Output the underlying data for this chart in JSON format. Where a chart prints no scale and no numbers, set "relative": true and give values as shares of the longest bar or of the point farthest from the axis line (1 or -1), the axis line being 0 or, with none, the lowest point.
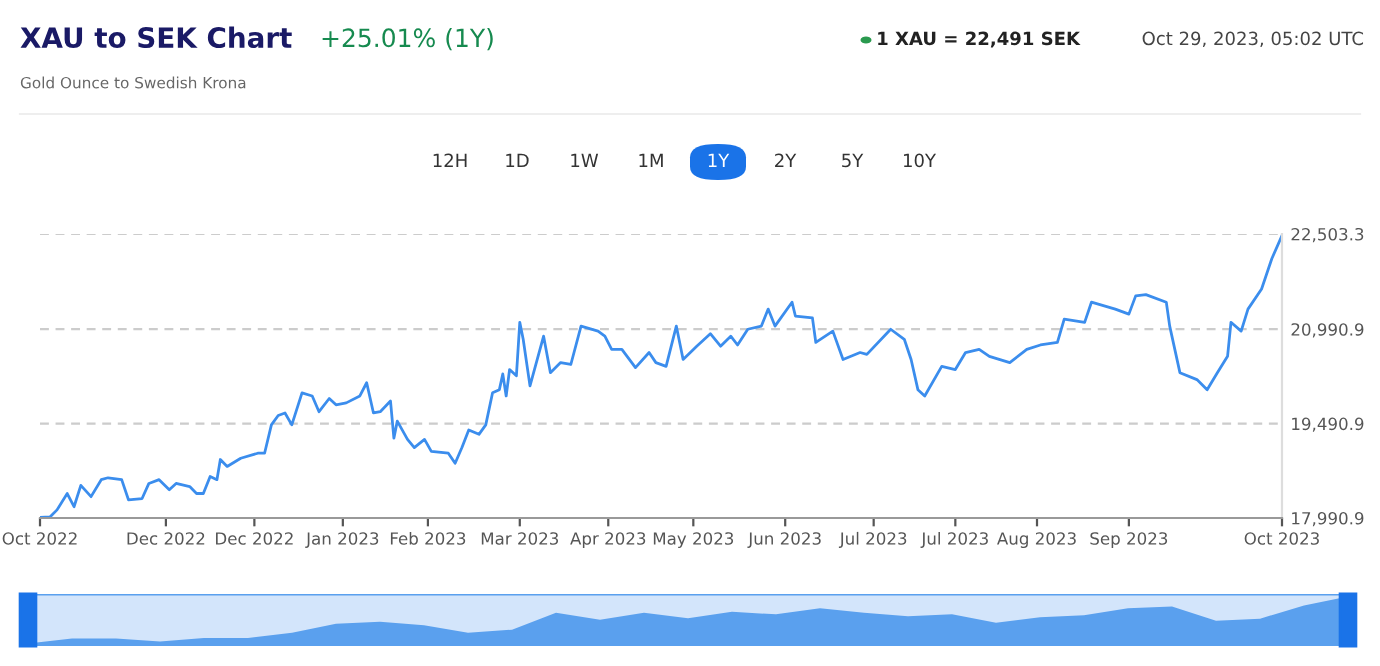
{
  "chart_data": [
    {
      "type": "line",
      "title": "XAU to SEK Chart",
      "subtitle": "Gold Ounce to Swedish Krona",
      "annotations": [
        "+25.01% (1Y)",
        "1 XAU = 22,491 SEK",
        "Oct 29, 2023, 05:02 UTC",
        "12H",
        "1D",
        "1W",
        "1M",
        "1Y",
        "2Y",
        "5Y",
        "10Y"
      ],
      "series": [
        {
          "color": "#3b8ded",
          "x": [
            "2022-10-29",
            "2022-11-01",
            "2022-11-03",
            "2022-11-06",
            "2022-11-08",
            "2022-11-10",
            "2022-11-13",
            "2022-11-16",
            "2022-11-18",
            "2022-11-22",
            "2022-11-24",
            "2022-11-28",
            "2022-11-30",
            "2022-12-03",
            "2022-12-06",
            "2022-12-08",
            "2022-12-12",
            "2022-12-14",
            "2022-12-16",
            "2022-12-18",
            "2022-12-20",
            "2022-12-21",
            "2022-12-23",
            "2022-12-27",
            "2023-01-01",
            "2023-01-03",
            "2023-01-05",
            "2023-01-07",
            "2023-01-09",
            "2023-01-11",
            "2023-01-14",
            "2023-01-17",
            "2023-01-19",
            "2023-01-22",
            "2023-01-24",
            "2023-01-27",
            "2023-01-31",
            "2023-02-02",
            "2023-02-04",
            "2023-02-06",
            "2023-02-09",
            "2023-02-10",
            "2023-02-11",
            "2023-02-14",
            "2023-02-16",
            "2023-02-19",
            "2023-02-21",
            "2023-02-26",
            "2023-02-28",
            "2023-03-02",
            "2023-03-04",
            "2023-03-07",
            "2023-03-09",
            "2023-03-11",
            "2023-03-13",
            "2023-03-14",
            "2023-03-15",
            "2023-03-16",
            "2023-03-18",
            "2023-03-19",
            "2023-03-20",
            "2023-03-22",
            "2023-03-26",
            "2023-03-28",
            "2023-03-31",
            "2023-04-03",
            "2023-04-06",
            "2023-04-11",
            "2023-04-13",
            "2023-04-15",
            "2023-04-18",
            "2023-04-22",
            "2023-04-26",
            "2023-04-28",
            "2023-05-01",
            "2023-05-04",
            "2023-05-06",
            "2023-05-10",
            "2023-05-14",
            "2023-05-17",
            "2023-05-20",
            "2023-05-22",
            "2023-05-25",
            "2023-05-29",
            "2023-05-31",
            "2023-06-02",
            "2023-06-07",
            "2023-06-08",
            "2023-06-13",
            "2023-06-14",
            "2023-06-19",
            "2023-06-22",
            "2023-06-27",
            "2023-06-29",
            "2023-07-06",
            "2023-07-10",
            "2023-07-12",
            "2023-07-14",
            "2023-07-16",
            "2023-07-21",
            "2023-07-25",
            "2023-07-28",
            "2023-08-01",
            "2023-08-04",
            "2023-08-10",
            "2023-08-15",
            "2023-08-19",
            "2023-08-24",
            "2023-08-26",
            "2023-09-01",
            "2023-09-03",
            "2023-09-10",
            "2023-09-14",
            "2023-09-16",
            "2023-09-19",
            "2023-09-25",
            "2023-09-26",
            "2023-09-29",
            "2023-10-04",
            "2023-10-07",
            "2023-10-10",
            "2023-10-13",
            "2023-10-14",
            "2023-10-17",
            "2023-10-19",
            "2023-10-23",
            "2023-10-26",
            "2023-10-29"
          ],
          "values": [
            18000,
            18010,
            18120,
            18380,
            18170,
            18510,
            18330,
            18600,
            18630,
            18600,
            18280,
            18300,
            18540,
            18600,
            18440,
            18540,
            18490,
            18380,
            18380,
            18650,
            18600,
            18920,
            18810,
            18940,
            19020,
            19020,
            19470,
            19620,
            19660,
            19470,
            19980,
            19930,
            19680,
            19890,
            19790,
            19820,
            19930,
            20140,
            19660,
            19680,
            19850,
            19260,
            19530,
            19240,
            19110,
            19240,
            19050,
            19020,
            18860,
            19110,
            19390,
            19320,
            19470,
            19980,
            20030,
            20280,
            19930,
            20350,
            20250,
            21100,
            20830,
            20090,
            20880,
            20300,
            20460,
            20430,
            21040,
            20960,
            20880,
            20670,
            20670,
            20380,
            20620,
            20460,
            20400,
            21040,
            20510,
            20720,
            20920,
            20720,
            20880,
            20740,
            20990,
            21040,
            21310,
            21040,
            21420,
            21200,
            21170,
            20780,
            20960,
            20510,
            20620,
            20590,
            20990,
            20830,
            20510,
            20030,
            19930,
            20400,
            20350,
            20620,
            20670,
            20560,
            20460,
            20670,
            20740,
            20780,
            21150,
            21100,
            21420,
            21310,
            21230,
            21520,
            21540,
            21420,
            21040,
            20300,
            20190,
            20030,
            20300,
            20560,
            21100,
            20960,
            21310,
            21630,
            22110,
            22480
          ]
        }
      ],
      "xlim": [
        "2022-10-29",
        "2023-10-29"
      ],
      "xticks": [
        {
          "value": "2022-10-29",
          "label": "Oct 2022"
        },
        {
          "value": "2022-12-05",
          "label": "Dec 2022"
        },
        {
          "value": "2022-12-31",
          "label": "Dec 2022"
        },
        {
          "value": "2023-01-26",
          "label": "Jan 2023"
        },
        {
          "value": "2023-02-20",
          "label": "Feb 2023"
        },
        {
          "value": "2023-03-19",
          "label": "Mar 2023"
        },
        {
          "value": "2023-04-14",
          "label": "Apr 2023"
        },
        {
          "value": "2023-05-09",
          "label": "May 2023"
        },
        {
          "value": "2023-06-05",
          "label": "Jun 2023"
        },
        {
          "value": "2023-07-01",
          "label": "Jul 2023"
        },
        {
          "value": "2023-07-25",
          "label": "Jul 2023"
        },
        {
          "value": "2023-08-18",
          "label": "Aug 2023"
        },
        {
          "value": "2023-09-14",
          "label": "Sep 2023"
        },
        {
          "value": "2023-10-29",
          "label": "Oct 2023"
        }
      ],
      "ylim": [
        17990.9,
        22503.3
      ],
      "yticks": [
        {
          "value": 17990.9,
          "label": "17,990.9"
        },
        {
          "value": 19490.9,
          "label": "19,490.9"
        },
        {
          "value": 20990.9,
          "label": "20,990.9"
        },
        {
          "value": 22503.3,
          "label": "22,503.3"
        }
      ],
      "grid": "y",
      "marker": "none",
      "line_style": "solid"
    },
    {
      "type": "area",
      "relative": true,
      "tick_labels": false,
      "categories": [
        null,
        null,
        null,
        null,
        null,
        null,
        null,
        null,
        null,
        null,
        null,
        null,
        null,
        null,
        null,
        null,
        null,
        null,
        null,
        null,
        null,
        null,
        null,
        null,
        null,
        null,
        null,
        null,
        null,
        null,
        null
      ],
      "series": [
        {
          "color": "#5aa0ee",
          "values": [
            0.05,
            0.15,
            0.15,
            0.09,
            0.16,
            0.16,
            0.27,
            0.45,
            0.49,
            0.42,
            0.27,
            0.33,
            0.67,
            0.53,
            0.67,
            0.56,
            0.69,
            0.64,
            0.76,
            0.67,
            0.6,
            0.64,
            0.47,
            0.58,
            0.62,
            0.76,
            0.8,
            0.51,
            0.55,
            0.82,
            1.0
          ]
        }
      ]
    }
  ]
}
